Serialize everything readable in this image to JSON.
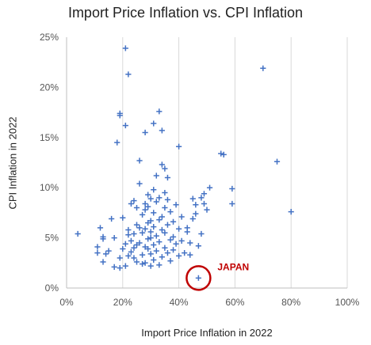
{
  "chart_data": {
    "type": "scatter",
    "title": "Import Price Inflation vs. CPI Inflation",
    "xlabel": "Import Price Inflation in 2022",
    "ylabel": "CPI Inflation in 2022",
    "xlim": [
      0,
      100
    ],
    "ylim": [
      0,
      25
    ],
    "x_ticks": [
      "0%",
      "20%",
      "40%",
      "60%",
      "80%",
      "100%"
    ],
    "y_ticks": [
      "0%",
      "5%",
      "10%",
      "15%",
      "20%",
      "25%"
    ],
    "grid": "vertical",
    "marker": "plus",
    "marker_color": "#4472c4",
    "highlight": {
      "label": "JAPAN",
      "x": 47,
      "y": 1.0,
      "color": "#c00000"
    },
    "points": [
      [
        4,
        5.4
      ],
      [
        11,
        3.5
      ],
      [
        11,
        4.1
      ],
      [
        12,
        6.0
      ],
      [
        13,
        4.9
      ],
      [
        13,
        5.1
      ],
      [
        13,
        2.6
      ],
      [
        14,
        3.4
      ],
      [
        15,
        3.7
      ],
      [
        16,
        6.9
      ],
      [
        17,
        5.0
      ],
      [
        17,
        2.1
      ],
      [
        18,
        14.5
      ],
      [
        19,
        17.4
      ],
      [
        19,
        17.2
      ],
      [
        19,
        3.0
      ],
      [
        19,
        2.0
      ],
      [
        20,
        3.9
      ],
      [
        20,
        7.0
      ],
      [
        21,
        16.2
      ],
      [
        21,
        4.4
      ],
      [
        21,
        2.2
      ],
      [
        21,
        23.9
      ],
      [
        22,
        21.3
      ],
      [
        22,
        3.2
      ],
      [
        22,
        5.3
      ],
      [
        22,
        5.8
      ],
      [
        23,
        4.7
      ],
      [
        23,
        8.4
      ],
      [
        23,
        3.6
      ],
      [
        24,
        8.7
      ],
      [
        24,
        5.4
      ],
      [
        24,
        4.0
      ],
      [
        24,
        3.0
      ],
      [
        25,
        6.3
      ],
      [
        25,
        2.6
      ],
      [
        25,
        4.3
      ],
      [
        25,
        8.0
      ],
      [
        26,
        10.4
      ],
      [
        26,
        12.7
      ],
      [
        26,
        4.5
      ],
      [
        26,
        6.0
      ],
      [
        27,
        2.4
      ],
      [
        27,
        3.3
      ],
      [
        27,
        5.5
      ],
      [
        27,
        7.3
      ],
      [
        28,
        15.5
      ],
      [
        28,
        4.1
      ],
      [
        28,
        2.5
      ],
      [
        28,
        5.9
      ],
      [
        28,
        7.8
      ],
      [
        28,
        8.4
      ],
      [
        29,
        4.9
      ],
      [
        29,
        3.9
      ],
      [
        29,
        6.5
      ],
      [
        29,
        8.1
      ],
      [
        29,
        9.3
      ],
      [
        30,
        2.2
      ],
      [
        30,
        3.4
      ],
      [
        30,
        5.0
      ],
      [
        30,
        5.6
      ],
      [
        30,
        6.7
      ],
      [
        30,
        8.9
      ],
      [
        31,
        4.3
      ],
      [
        31,
        7.5
      ],
      [
        31,
        16.4
      ],
      [
        31,
        9.8
      ],
      [
        31,
        6.1
      ],
      [
        31,
        2.8
      ],
      [
        32,
        5.2
      ],
      [
        32,
        3.7
      ],
      [
        32,
        8.6
      ],
      [
        32,
        11.2
      ],
      [
        33,
        17.6
      ],
      [
        33,
        4.6
      ],
      [
        33,
        6.8
      ],
      [
        33,
        2.3
      ],
      [
        33,
        9.0
      ],
      [
        34,
        15.7
      ],
      [
        34,
        5.8
      ],
      [
        34,
        3.1
      ],
      [
        34,
        7.1
      ],
      [
        34,
        12.3
      ],
      [
        35,
        4.0
      ],
      [
        35,
        5.5
      ],
      [
        35,
        8.0
      ],
      [
        35,
        9.5
      ],
      [
        35,
        11.9
      ],
      [
        36,
        3.5
      ],
      [
        36,
        6.3
      ],
      [
        36,
        8.8
      ],
      [
        36,
        11.0
      ],
      [
        37,
        4.8
      ],
      [
        37,
        2.7
      ],
      [
        37,
        7.6
      ],
      [
        38,
        5.1
      ],
      [
        38,
        3.8
      ],
      [
        38,
        6.6
      ],
      [
        39,
        4.4
      ],
      [
        39,
        8.3
      ],
      [
        40,
        14.1
      ],
      [
        40,
        3.2
      ],
      [
        40,
        5.9
      ],
      [
        41,
        7.1
      ],
      [
        41,
        4.7
      ],
      [
        42,
        3.5
      ],
      [
        43,
        5.6
      ],
      [
        43,
        6.0
      ],
      [
        44,
        3.3
      ],
      [
        44,
        4.5
      ],
      [
        45,
        6.9
      ],
      [
        45,
        8.9
      ],
      [
        46,
        7.4
      ],
      [
        46,
        8.3
      ],
      [
        47,
        4.2
      ],
      [
        48,
        9.0
      ],
      [
        48,
        5.4
      ],
      [
        49,
        8.4
      ],
      [
        49,
        9.4
      ],
      [
        50,
        7.8
      ],
      [
        51,
        10.0
      ],
      [
        55,
        13.4
      ],
      [
        56,
        13.3
      ],
      [
        59,
        8.4
      ],
      [
        59,
        9.9
      ],
      [
        70,
        21.9
      ],
      [
        75,
        12.6
      ],
      [
        80,
        7.6
      ]
    ]
  }
}
